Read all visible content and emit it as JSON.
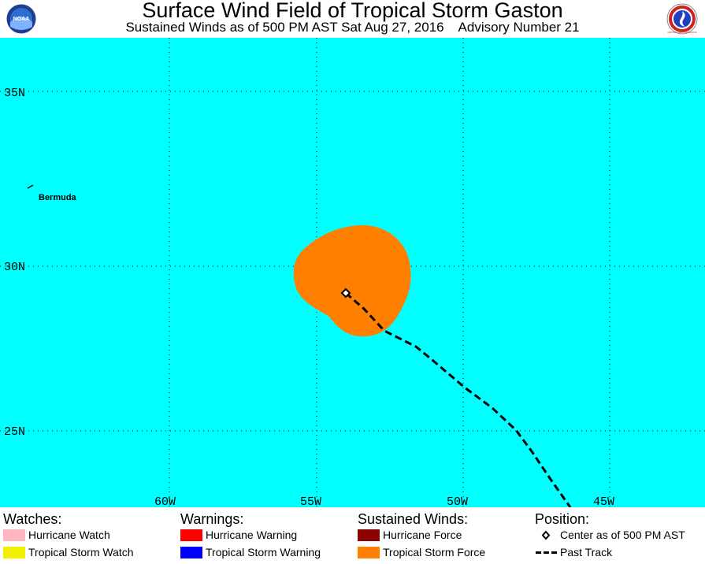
{
  "header": {
    "title": "Surface Wind Field of Tropical Storm Gaston",
    "subtitle": "Sustained Winds as of 500 PM AST Sat Aug 27, 2016    Advisory Number 21",
    "logo_left": {
      "icon": "noaa-logo-icon",
      "text": "NOAA"
    },
    "logo_right": {
      "icon": "nws-logo-icon",
      "text": "NATIONAL WEATHER SERVICE"
    }
  },
  "map": {
    "background_color": "#00ffff",
    "lat_labels": [
      "35N",
      "30N",
      "25N"
    ],
    "lon_labels": [
      "60W",
      "55W",
      "50W",
      "45W"
    ],
    "place_label": "Bermuda",
    "storm_center": {
      "lat": 29.2,
      "lon": 54.7
    },
    "tropical_storm_force_color": "#ff8000"
  },
  "legend": {
    "watches": {
      "heading": "Watches:",
      "items": [
        {
          "label": "Hurricane Watch",
          "color": "#ffb6c1"
        },
        {
          "label": "Tropical Storm Watch",
          "color": "#f0f000"
        }
      ]
    },
    "warnings": {
      "heading": "Warnings:",
      "items": [
        {
          "label": "Hurricane Warning",
          "color": "#ff0000"
        },
        {
          "label": "Tropical Storm Warning",
          "color": "#0000ff"
        }
      ]
    },
    "winds": {
      "heading": "Sustained Winds:",
      "items": [
        {
          "label": "Hurricane Force",
          "color": "#8b0000"
        },
        {
          "label": "Tropical Storm Force",
          "color": "#ff8000"
        }
      ]
    },
    "position": {
      "heading": "Position:",
      "items": [
        {
          "label": "Center as of 500 PM AST",
          "icon": "diamond-icon"
        },
        {
          "label": "Past Track",
          "icon": "dashed-line-icon"
        }
      ]
    }
  }
}
